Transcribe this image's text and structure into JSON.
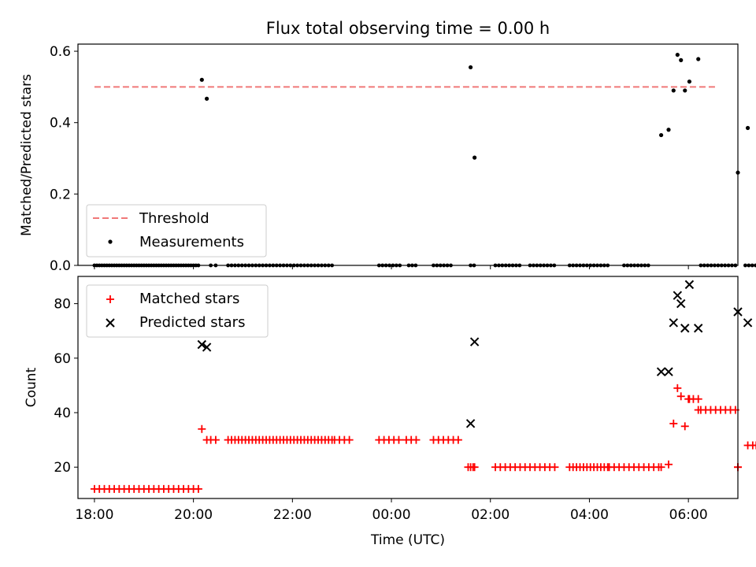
{
  "chart_data": [
    {
      "type": "scatter",
      "title": "Flux total observing time = 0.00 h",
      "ylabel": "Matched/Predicted stars",
      "xlabel": "",
      "xlim": [
        17.667,
        31.0
      ],
      "ylim": [
        0,
        0.62
      ],
      "yticks": [
        0.0,
        0.2,
        0.4,
        0.6
      ],
      "ytick_labels": [
        "0.0",
        "0.2",
        "0.4",
        "0.6"
      ],
      "legend_position": "lower-left",
      "threshold": {
        "name": "Threshold",
        "y": 0.5,
        "x": [
          18.0,
          30.6
        ],
        "color": "#f07878"
      },
      "series": [
        {
          "name": "Measurements",
          "color": "#000000",
          "points": [
            [
              20.17,
              0.52
            ],
            [
              20.27,
              0.467
            ],
            [
              25.6,
              0.555
            ],
            [
              25.68,
              0.302
            ],
            [
              29.45,
              0.365
            ],
            [
              29.6,
              0.38
            ],
            [
              29.7,
              0.49
            ],
            [
              29.78,
              0.59
            ],
            [
              29.85,
              0.575
            ],
            [
              29.93,
              0.49
            ],
            [
              30.02,
              0.515
            ],
            [
              30.2,
              0.578
            ],
            [
              31.0,
              0.26
            ],
            [
              31.2,
              0.385
            ]
          ],
          "zero_ranges": [
            [
              18.0,
              20.1,
              0.05
            ],
            [
              20.35,
              20.5,
              0.1
            ],
            [
              20.7,
              22.85,
              0.07
            ],
            [
              23.75,
              24.2,
              0.07
            ],
            [
              24.35,
              24.55,
              0.07
            ],
            [
              24.85,
              25.25,
              0.07
            ],
            [
              25.6,
              25.7,
              0.07
            ],
            [
              26.1,
              26.6,
              0.07
            ],
            [
              26.8,
              27.3,
              0.07
            ],
            [
              27.6,
              28.4,
              0.07
            ],
            [
              28.7,
              29.2,
              0.07
            ],
            [
              30.25,
              31.0,
              0.07
            ],
            [
              31.15,
              31.75,
              0.07
            ]
          ]
        }
      ]
    },
    {
      "type": "scatter",
      "title": "",
      "ylabel": "Count",
      "xlabel": "Time (UTC)",
      "xlim": [
        17.667,
        31.0
      ],
      "ylim": [
        8.5,
        90
      ],
      "yticks": [
        20,
        40,
        60,
        80
      ],
      "xticks": [
        18,
        20,
        22,
        24,
        26,
        28,
        30
      ],
      "xtick_labels": [
        "18:00",
        "20:00",
        "22:00",
        "00:00",
        "02:00",
        "04:00",
        "06:00"
      ],
      "legend_position": "upper-left",
      "series": [
        {
          "name": "Matched stars",
          "color": "#ff0000",
          "marker": "plus",
          "points": [
            [
              20.17,
              34
            ],
            [
              20.27,
              30
            ],
            [
              25.6,
              20
            ],
            [
              25.68,
              20
            ],
            [
              29.45,
              20
            ],
            [
              29.6,
              21
            ],
            [
              29.7,
              36
            ],
            [
              29.78,
              49
            ],
            [
              29.85,
              46
            ],
            [
              29.93,
              35
            ],
            [
              30.02,
              45
            ],
            [
              30.2,
              41
            ],
            [
              31.0,
              20
            ],
            [
              31.2,
              28
            ]
          ],
          "runs": [
            [
              18.0,
              20.1,
              12,
              0.1
            ],
            [
              20.35,
              20.5,
              30,
              0.1
            ],
            [
              20.7,
              22.85,
              30,
              0.07
            ],
            [
              22.85,
              23.15,
              30,
              0.1
            ],
            [
              23.75,
              24.2,
              30,
              0.1
            ],
            [
              24.3,
              24.55,
              30,
              0.1
            ],
            [
              24.85,
              25.35,
              30,
              0.1
            ],
            [
              25.55,
              25.7,
              20,
              0.1
            ],
            [
              26.1,
              26.6,
              20,
              0.1
            ],
            [
              26.7,
              27.3,
              20,
              0.1
            ],
            [
              27.6,
              28.4,
              20,
              0.07
            ],
            [
              28.4,
              29.4,
              20,
              0.1
            ],
            [
              30.0,
              30.25,
              45,
              0.1
            ],
            [
              30.25,
              31.0,
              41,
              0.1
            ],
            [
              31.0,
              31.05,
              20,
              0.1
            ],
            [
              31.3,
              31.75,
              28,
              0.07
            ]
          ]
        },
        {
          "name": "Predicted stars",
          "color": "#000000",
          "marker": "x",
          "points": [
            [
              20.17,
              65
            ],
            [
              20.27,
              64
            ],
            [
              25.6,
              36
            ],
            [
              25.68,
              66
            ],
            [
              29.45,
              55
            ],
            [
              29.6,
              55
            ],
            [
              29.7,
              73
            ],
            [
              29.78,
              83
            ],
            [
              29.85,
              80
            ],
            [
              29.93,
              71
            ],
            [
              30.02,
              87
            ],
            [
              30.2,
              71
            ],
            [
              31.0,
              77
            ],
            [
              31.2,
              73
            ]
          ]
        }
      ]
    }
  ]
}
